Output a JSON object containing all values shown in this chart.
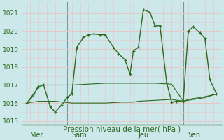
{
  "xlabel": "Pression niveau de la mer( hPa )",
  "bg_color": "#cce8ea",
  "grid_color_major": "#e8c8c8",
  "grid_color_minor": "#e8c8c8",
  "line_color": "#2d6a1e",
  "vline_color": "#7a9a9a",
  "ylim": [
    1014.8,
    1021.6
  ],
  "yticks": [
    1015,
    1016,
    1017,
    1018,
    1019,
    1020,
    1021
  ],
  "xlim": [
    0,
    12
  ],
  "day_labels": [
    "Mer",
    "Sam",
    "Jeu",
    "Ven"
  ],
  "day_positions": [
    0.5,
    3.0,
    7.0,
    10.0
  ],
  "vline_positions": [
    0.3,
    2.7,
    6.7,
    9.7
  ],
  "line1_x": [
    0.3,
    0.7,
    1.0,
    1.3,
    1.7,
    2.0,
    2.4,
    2.7,
    3.0,
    3.3,
    3.7,
    4.0,
    4.3,
    4.7,
    5.0,
    5.5,
    5.8,
    6.2,
    6.5,
    6.7,
    7.0,
    7.3,
    7.7,
    8.0,
    8.3,
    8.7,
    9.0,
    9.3,
    9.7,
    10.0,
    10.3,
    10.7,
    11.0,
    11.3,
    11.7
  ],
  "line1_y": [
    1016.0,
    1016.5,
    1016.9,
    1017.0,
    1015.8,
    1015.5,
    1015.9,
    1016.3,
    1016.5,
    1019.1,
    1019.65,
    1019.8,
    1019.85,
    1019.8,
    1019.8,
    1019.1,
    1018.75,
    1018.4,
    1017.6,
    1018.9,
    1019.1,
    1021.2,
    1021.05,
    1020.3,
    1020.3,
    1017.15,
    1016.05,
    1016.1,
    1016.1,
    1020.0,
    1020.25,
    1019.9,
    1019.6,
    1017.3,
    1016.5
  ],
  "line2_x": [
    0.3,
    0.7,
    1.0,
    1.3,
    1.7,
    2.0,
    2.4,
    2.7,
    3.0,
    4.0,
    5.0,
    6.0,
    6.7,
    7.0,
    8.0,
    9.0,
    9.7,
    10.0,
    11.0,
    11.7
  ],
  "line2_y": [
    1016.0,
    1016.4,
    1017.0,
    1017.0,
    1017.0,
    1017.0,
    1017.0,
    1017.0,
    1017.0,
    1017.05,
    1017.1,
    1017.1,
    1017.1,
    1017.1,
    1017.1,
    1017.05,
    1016.1,
    1016.15,
    1016.3,
    1016.5
  ],
  "line3_x": [
    0.3,
    1.0,
    2.0,
    3.0,
    4.0,
    5.0,
    6.0,
    6.7,
    7.0,
    8.0,
    9.0,
    9.7,
    10.0,
    11.0,
    11.7
  ],
  "line3_y": [
    1016.0,
    1016.1,
    1016.1,
    1016.0,
    1016.0,
    1016.0,
    1016.05,
    1016.05,
    1016.1,
    1016.15,
    1016.2,
    1016.1,
    1016.2,
    1016.35,
    1016.5
  ]
}
